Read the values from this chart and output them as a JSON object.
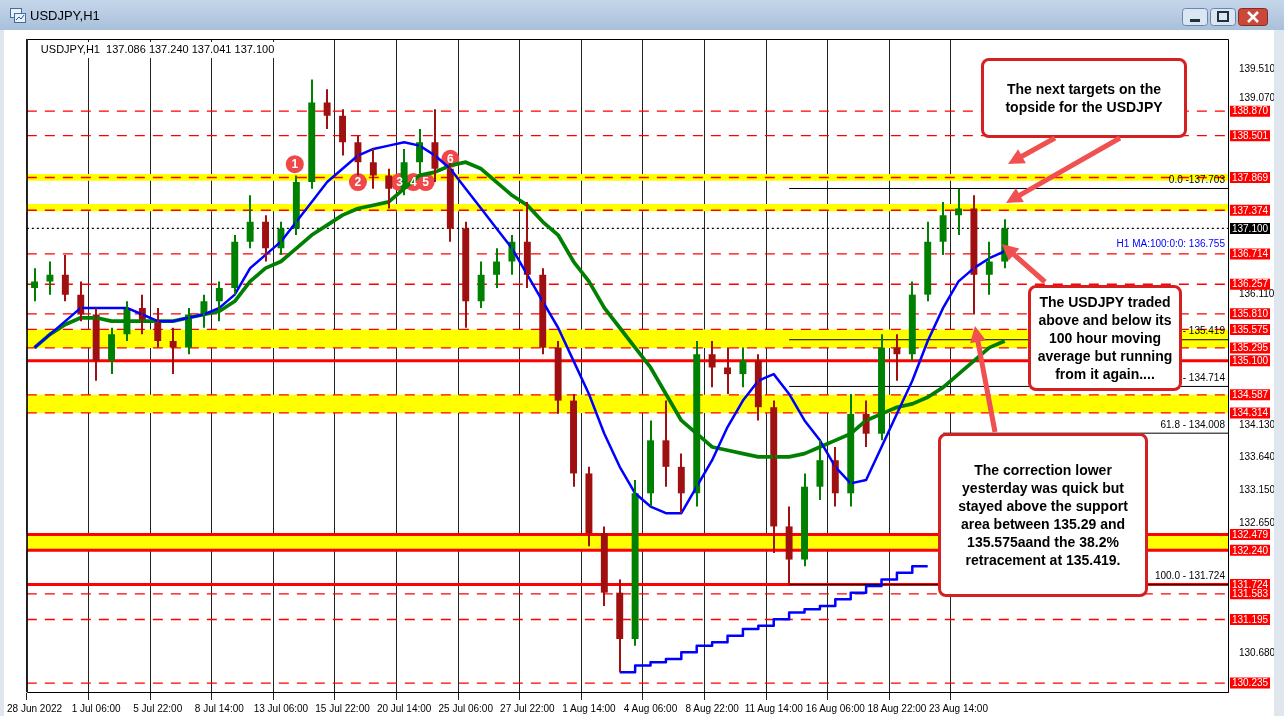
{
  "chart_data": {
    "type": "candlestick",
    "title": "USDJPY,H1",
    "subtitle": "USDJPY,H1  137.086 137.240 137.041 137.100",
    "categories": [
      "28 Jun 2022",
      null,
      null,
      null,
      "1 Jul 06:00",
      null,
      null,
      null,
      "5 Jul 22:00",
      null,
      null,
      null,
      "8 Jul 14:00",
      null,
      null,
      null,
      "13 Jul 06:00",
      null,
      null,
      null,
      "15 Jul 22:00",
      null,
      null,
      null,
      "20 Jul 14:00",
      null,
      null,
      null,
      "25 Jul 06:00",
      null,
      null,
      null,
      "27 Jul 22:00",
      null,
      null,
      null,
      "1 Aug 14:00",
      null,
      null,
      null,
      "4 Aug 06:00",
      null,
      null,
      null,
      "8 Aug 22:00",
      null,
      null,
      null,
      "11 Aug 14:00",
      null,
      null,
      null,
      "16 Aug 06:00",
      null,
      null,
      null,
      "18 Aug 22:00",
      null,
      null,
      null,
      "23 Aug 14:00",
      null,
      null,
      null,
      null,
      null,
      null,
      null,
      null,
      null,
      null,
      null,
      null,
      null,
      null,
      null,
      null,
      null
    ],
    "ohlc": [
      [
        136.2,
        136.5,
        136.0,
        136.3
      ],
      [
        136.3,
        136.6,
        136.1,
        136.4
      ],
      [
        136.4,
        136.7,
        136.0,
        136.1
      ],
      [
        136.1,
        136.3,
        135.7,
        135.8
      ],
      [
        135.8,
        135.9,
        134.8,
        135.1
      ],
      [
        135.1,
        135.6,
        134.9,
        135.5
      ],
      [
        135.5,
        136.0,
        135.4,
        135.9
      ],
      [
        135.9,
        136.1,
        135.5,
        135.7
      ],
      [
        135.7,
        135.9,
        135.3,
        135.4
      ],
      [
        135.4,
        135.6,
        134.9,
        135.3
      ],
      [
        135.3,
        135.9,
        135.2,
        135.8
      ],
      [
        135.8,
        136.1,
        135.6,
        136.0
      ],
      [
        136.0,
        136.3,
        135.7,
        136.2
      ],
      [
        136.2,
        137.0,
        136.1,
        136.9
      ],
      [
        136.9,
        137.6,
        136.8,
        137.2
      ],
      [
        137.2,
        137.3,
        136.6,
        136.8
      ],
      [
        136.8,
        137.2,
        136.7,
        137.1
      ],
      [
        137.1,
        137.9,
        137.0,
        137.8
      ],
      [
        137.8,
        139.35,
        137.7,
        139.0
      ],
      [
        139.0,
        139.2,
        138.6,
        138.8
      ],
      [
        138.8,
        138.9,
        138.2,
        138.4
      ],
      [
        138.4,
        138.5,
        137.9,
        138.1
      ],
      [
        138.1,
        138.3,
        137.7,
        137.9
      ],
      [
        137.9,
        138.0,
        137.4,
        137.7
      ],
      [
        137.7,
        138.3,
        137.6,
        138.1
      ],
      [
        138.1,
        138.6,
        137.9,
        138.4
      ],
      [
        138.4,
        138.9,
        137.8,
        138.0
      ],
      [
        138.0,
        138.1,
        136.9,
        137.1
      ],
      [
        137.1,
        137.2,
        135.6,
        136.0
      ],
      [
        136.0,
        136.6,
        135.9,
        136.4
      ],
      [
        136.4,
        136.8,
        136.2,
        136.6
      ],
      [
        136.6,
        137.0,
        136.4,
        136.9
      ],
      [
        136.9,
        137.5,
        136.2,
        136.4
      ],
      [
        136.4,
        136.5,
        135.2,
        135.3
      ],
      [
        135.3,
        135.4,
        134.3,
        134.5
      ],
      [
        134.5,
        134.6,
        133.2,
        133.4
      ],
      [
        133.4,
        133.5,
        132.3,
        132.5
      ],
      [
        132.5,
        132.6,
        131.4,
        131.6
      ],
      [
        131.6,
        131.8,
        130.4,
        130.9
      ],
      [
        130.9,
        133.3,
        130.8,
        133.1
      ],
      [
        133.1,
        134.2,
        132.9,
        133.9
      ],
      [
        133.9,
        134.5,
        133.2,
        133.5
      ],
      [
        133.5,
        133.7,
        132.8,
        133.1
      ],
      [
        133.1,
        135.4,
        132.9,
        135.2
      ],
      [
        135.2,
        135.4,
        134.7,
        135.0
      ],
      [
        135.0,
        135.3,
        134.6,
        134.9
      ],
      [
        134.9,
        135.3,
        134.7,
        135.1
      ],
      [
        135.1,
        135.2,
        134.2,
        134.4
      ],
      [
        134.4,
        134.5,
        132.2,
        132.6
      ],
      [
        132.6,
        132.9,
        131.7,
        132.1
      ],
      [
        132.1,
        133.4,
        132.0,
        133.2
      ],
      [
        133.2,
        133.9,
        133.0,
        133.6
      ],
      [
        133.6,
        133.8,
        132.9,
        133.1
      ],
      [
        133.1,
        134.6,
        132.9,
        134.3
      ],
      [
        134.3,
        134.5,
        133.8,
        134.0
      ],
      [
        134.0,
        135.5,
        133.9,
        135.3
      ],
      [
        135.3,
        135.5,
        134.8,
        135.2
      ],
      [
        135.2,
        136.3,
        135.1,
        136.1
      ],
      [
        136.1,
        137.2,
        136.0,
        136.9
      ],
      [
        136.9,
        137.5,
        136.7,
        137.3
      ],
      [
        137.3,
        137.7,
        137.0,
        137.4
      ],
      [
        137.4,
        137.6,
        135.8,
        136.4
      ],
      [
        136.4,
        136.9,
        136.1,
        136.6
      ],
      [
        136.6,
        137.24,
        136.5,
        137.1
      ],
      null,
      null,
      null,
      null,
      null,
      null,
      null,
      null,
      null,
      null,
      null,
      null,
      null,
      null
    ],
    "series": [
      {
        "type": "line",
        "color": "#0000ff",
        "values": [
          135.3,
          135.5,
          135.7,
          135.9,
          135.9,
          135.9,
          135.9,
          135.8,
          135.7,
          135.7,
          135.75,
          135.8,
          135.9,
          136.1,
          136.5,
          136.7,
          136.9,
          137.2,
          137.5,
          137.8,
          138.0,
          138.2,
          138.3,
          138.35,
          138.4,
          138.35,
          138.2,
          138.0,
          137.7,
          137.4,
          137.1,
          136.8,
          136.4,
          136.0,
          135.6,
          135.1,
          134.6,
          134.0,
          133.5,
          133.1,
          132.9,
          132.8,
          132.8,
          133.2,
          133.6,
          134.1,
          134.5,
          134.8,
          134.9,
          134.6,
          134.2,
          133.9,
          133.5,
          133.25,
          133.3,
          133.8,
          134.3,
          134.8,
          135.4,
          135.9,
          136.3,
          136.5,
          136.65,
          136.755,
          null,
          null,
          null,
          null,
          null,
          null,
          null,
          null,
          null,
          null,
          null,
          null,
          null,
          null
        ]
      },
      {
        "type": "line",
        "color": "#008000",
        "values": [
          135.3,
          135.5,
          135.65,
          135.75,
          135.75,
          135.7,
          135.7,
          135.7,
          135.7,
          135.7,
          135.75,
          135.8,
          135.85,
          136.0,
          136.3,
          136.5,
          136.6,
          136.8,
          137.0,
          137.15,
          137.3,
          137.4,
          137.45,
          137.5,
          137.7,
          137.9,
          137.95,
          138.05,
          138.1,
          138.0,
          137.8,
          137.6,
          137.45,
          137.2,
          137.0,
          136.6,
          136.3,
          135.9,
          135.6,
          135.3,
          135.0,
          134.6,
          134.2,
          134.0,
          133.8,
          133.75,
          133.7,
          133.65,
          133.65,
          133.65,
          133.7,
          133.8,
          133.9,
          134.0,
          134.2,
          134.3,
          134.4,
          134.45,
          134.55,
          134.7,
          134.9,
          135.1,
          135.3,
          135.4,
          null,
          null,
          null,
          null,
          null,
          null,
          null,
          null,
          null,
          null,
          null,
          null,
          null,
          null
        ]
      },
      {
        "type": "step",
        "color": "#0000ff",
        "values": [
          null,
          null,
          null,
          null,
          null,
          null,
          null,
          null,
          null,
          null,
          null,
          null,
          null,
          null,
          null,
          null,
          null,
          null,
          null,
          null,
          null,
          null,
          null,
          null,
          null,
          null,
          null,
          null,
          null,
          null,
          null,
          null,
          null,
          null,
          null,
          null,
          null,
          null,
          130.4,
          130.4,
          130.5,
          130.55,
          130.6,
          130.7,
          130.8,
          130.85,
          130.95,
          131.05,
          131.1,
          131.2,
          131.3,
          131.35,
          131.4,
          131.5,
          131.6,
          131.7,
          131.8,
          131.9,
          132.0,
          null,
          null,
          null,
          null,
          null,
          null,
          null,
          null,
          null,
          null,
          null,
          null,
          null,
          null,
          null,
          null,
          null,
          null,
          null
        ]
      }
    ],
    "ylim": [
      130.1,
      139.96
    ],
    "yticks": [
      {
        "value": 139.51,
        "label": "139.510"
      },
      {
        "value": 139.07,
        "label": "139.070"
      },
      {
        "value": 136.11,
        "label": "136.110"
      },
      {
        "value": 134.13,
        "label": "134.130"
      },
      {
        "value": 133.64,
        "label": "133.640"
      },
      {
        "value": 133.15,
        "label": "133.150"
      },
      {
        "value": 132.65,
        "label": "132.650"
      },
      {
        "value": 130.68,
        "label": "130.680"
      }
    ],
    "grid": "x",
    "legend": false,
    "bands": [
      {
        "axis": "y",
        "from": 137.82,
        "to": 137.92,
        "color": "#ffff00"
      },
      {
        "axis": "y",
        "from": 137.36,
        "to": 137.47,
        "color": "#ffff00"
      },
      {
        "axis": "y",
        "from": 135.295,
        "to": 135.575,
        "color": "#ffff00"
      },
      {
        "axis": "y",
        "from": 134.314,
        "to": 134.587,
        "color": "#ffff00"
      },
      {
        "axis": "y",
        "from": 132.24,
        "to": 132.479,
        "color": "#ffff00"
      }
    ],
    "ref_lines": [
      {
        "axis": "y",
        "value": 138.87,
        "label": "138.870",
        "color": "#ff0000",
        "line_style": "dashed"
      },
      {
        "axis": "y",
        "value": 138.501,
        "label": "138.501",
        "color": "#ff0000",
        "line_style": "dashed"
      },
      {
        "axis": "y",
        "value": 137.869,
        "label": "137.869",
        "color": "#ff0000",
        "line_style": "dashed"
      },
      {
        "axis": "y",
        "value": 137.374,
        "label": "137.374",
        "color": "#ff0000",
        "line_style": "dashed"
      },
      {
        "axis": "y",
        "value": 137.1,
        "label": "137.100",
        "color": "#000000",
        "line_style": "dotted"
      },
      {
        "axis": "y",
        "value": 136.714,
        "label": "136.714",
        "color": "#ff0000",
        "line_style": "dashed"
      },
      {
        "axis": "y",
        "value": 136.257,
        "label": "136.257",
        "color": "#ff0000",
        "line_style": "dashed"
      },
      {
        "axis": "y",
        "value": 135.81,
        "label": "135.810",
        "color": "#ff0000",
        "line_style": "dashed"
      },
      {
        "axis": "y",
        "value": 135.575,
        "label": "135.575",
        "color": "#ff0000",
        "line_style": "dashed"
      },
      {
        "axis": "y",
        "value": 135.295,
        "label": "135.295",
        "color": "#ff0000",
        "line_style": "dashed"
      },
      {
        "axis": "y",
        "value": 135.1,
        "label": "135.100",
        "color": "#ff0000",
        "line_style": "solid"
      },
      {
        "axis": "y",
        "value": 134.587,
        "label": "134.587",
        "color": "#ff0000",
        "line_style": "dashed"
      },
      {
        "axis": "y",
        "value": 134.314,
        "label": "134.314",
        "color": "#ff0000",
        "line_style": "dashed"
      },
      {
        "axis": "y",
        "value": 132.479,
        "label": "132.479",
        "color": "#ff0000",
        "line_style": "solid"
      },
      {
        "axis": "y",
        "value": 132.24,
        "label": "132.240",
        "color": "#ff0000",
        "line_style": "solid"
      },
      {
        "axis": "y",
        "value": 131.724,
        "label": "131.724",
        "color": "#ff0000",
        "line_style": "solid"
      },
      {
        "axis": "y",
        "value": 131.583,
        "label": "131.583",
        "color": "#ff0000",
        "line_style": "dashed"
      },
      {
        "axis": "y",
        "value": 131.195,
        "label": "131.195",
        "color": "#ff0000",
        "line_style": "dashed"
      },
      {
        "axis": "y",
        "value": 130.235,
        "label": "130.235",
        "color": "#ff0000",
        "line_style": "dashed"
      },
      {
        "axis": "y",
        "value": 137.703,
        "color": "#000000",
        "line_style": "solid"
      },
      {
        "axis": "y",
        "value": 135.419,
        "color": "#000000",
        "line_style": "solid"
      },
      {
        "axis": "y",
        "value": 134.714,
        "color": "#000000",
        "line_style": "solid"
      },
      {
        "axis": "y",
        "value": 134.008,
        "color": "#000000",
        "line_style": "solid"
      },
      {
        "axis": "y",
        "value": 131.724,
        "color": "#000000",
        "line_style": "solid"
      }
    ],
    "annotations": [
      "The next targets on the topside for the USDJPY",
      "The USDJPY traded above and below its 100 hour moving average but running from it again....",
      "The correction lower yesterday was quick but stayed above the support area between 135.29 and 135.575aand the 38.2% retracement at 135.419.",
      "1",
      "2",
      "3",
      "4",
      "5",
      "6",
      {
        "text": "H1 MA:100:0:0: 136.755",
        "y": 136.755
      },
      "0.0 -137.703",
      "- 135.419",
      "- 134.714",
      "61.8 - 134.008",
      "100.0 - 131.724"
    ]
  }
}
